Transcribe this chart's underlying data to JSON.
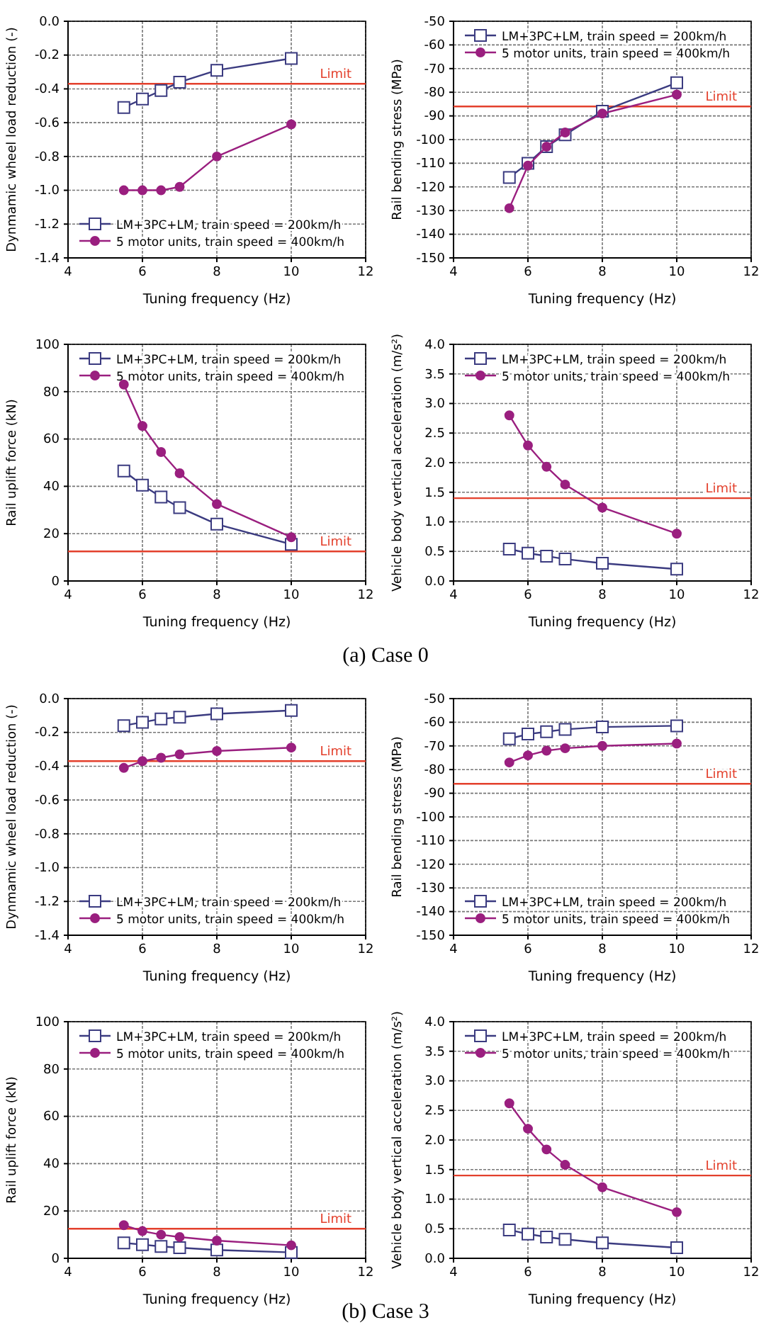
{
  "chart_data": [
    {
      "type": "line",
      "xlabel": "Tuning frequency (Hz)",
      "ylabel": "Dynmamic wheel load reduction (-)",
      "x": [
        5.5,
        6,
        6.5,
        7,
        8,
        10
      ],
      "xlim": [
        4,
        12
      ],
      "xticks": [
        4,
        6,
        8,
        10,
        12
      ],
      "ylim": [
        -1.4,
        0
      ],
      "yticks": [
        -1.4,
        -1.2,
        {
          "value": -1,
          "label": "-1.0"
        },
        -0.8,
        -0.6,
        -0.4,
        -0.2,
        {
          "value": 0,
          "label": "0.0"
        }
      ],
      "grid": true,
      "legend": "bottom",
      "series": [
        {
          "name": "LM+3PC+LM, train speed = 200km/h",
          "color": "#3b3b80",
          "marker": "square",
          "values": [
            -0.51,
            -0.46,
            -0.41,
            -0.36,
            -0.29,
            -0.22
          ]
        },
        {
          "name": "5 motor units, train speed = 400km/h",
          "color": "#9a1f7f",
          "marker": "circle",
          "values": [
            -1.0,
            -1.0,
            -1.0,
            -0.98,
            -0.8,
            -0.61
          ]
        }
      ],
      "ref_lines": [
        {
          "axis": "y",
          "value": -0.37,
          "label": "Limit",
          "color": "#e3402c"
        }
      ]
    },
    {
      "type": "line",
      "xlabel": "Tuning frequency (Hz)",
      "ylabel": "Rail bending stress (MPa)",
      "x": [
        5.5,
        6,
        6.5,
        7,
        8,
        10
      ],
      "xlim": [
        4,
        12
      ],
      "xticks": [
        4,
        6,
        8,
        10,
        12
      ],
      "ylim": [
        -150,
        -50
      ],
      "yticks": [
        -150,
        -140,
        -130,
        -120,
        -110,
        -100,
        -90,
        -80,
        -70,
        -60,
        -50
      ],
      "grid": true,
      "legend": "top",
      "series": [
        {
          "name": "LM+3PC+LM, train speed = 200km/h",
          "color": "#3b3b80",
          "marker": "square",
          "values": [
            -116,
            -110,
            -103,
            -98,
            -88,
            -76
          ]
        },
        {
          "name": "5 motor units, train speed = 400km/h",
          "color": "#9a1f7f",
          "marker": "circle",
          "values": [
            -129,
            -111,
            -103,
            -97,
            -89,
            -81
          ]
        }
      ],
      "ref_lines": [
        {
          "axis": "y",
          "value": -86,
          "label": "Limit",
          "color": "#e3402c"
        }
      ]
    },
    {
      "type": "line",
      "xlabel": "Tuning frequency (Hz)",
      "ylabel": "Rail uplift force (kN)",
      "x": [
        5.5,
        6,
        6.5,
        7,
        8,
        10
      ],
      "xlim": [
        4,
        12
      ],
      "xticks": [
        4,
        6,
        8,
        10,
        12
      ],
      "ylim": [
        0,
        100
      ],
      "yticks": [
        0,
        20,
        40,
        60,
        80,
        100
      ],
      "grid": true,
      "legend": "top",
      "series": [
        {
          "name": "LM+3PC+LM, train speed = 200km/h",
          "color": "#3b3b80",
          "marker": "square",
          "values": [
            46.5,
            40.5,
            35.5,
            31,
            24,
            15.5
          ]
        },
        {
          "name": "5 motor units, train speed = 400km/h",
          "color": "#9a1f7f",
          "marker": "circle",
          "values": [
            83,
            65.5,
            54.5,
            45.5,
            32.5,
            18.5
          ]
        }
      ],
      "ref_lines": [
        {
          "axis": "y",
          "value": 12.5,
          "label": "Limit",
          "color": "#e3402c"
        }
      ]
    },
    {
      "type": "line",
      "xlabel": "Tuning frequency (Hz)",
      "ylabel": "Vehicle body vertical acceleration (m/s²)",
      "x": [
        5.5,
        6,
        6.5,
        7,
        8,
        10
      ],
      "xlim": [
        4,
        12
      ],
      "xticks": [
        4,
        6,
        8,
        10,
        12
      ],
      "ylim": [
        0,
        4
      ],
      "yticks": [
        {
          "value": 0,
          "label": "0.0"
        },
        0.5,
        {
          "value": 1,
          "label": "1.0"
        },
        1.5,
        {
          "value": 2,
          "label": "2.0"
        },
        2.5,
        {
          "value": 3,
          "label": "3.0"
        },
        3.5,
        {
          "value": 4,
          "label": "4.0"
        }
      ],
      "grid": true,
      "legend": "top",
      "series": [
        {
          "name": "LM+3PC+LM, train speed = 200km/h",
          "color": "#3b3b80",
          "marker": "square",
          "values": [
            0.54,
            0.47,
            0.42,
            0.37,
            0.3,
            0.2
          ]
        },
        {
          "name": "5 motor units, train speed = 400km/h",
          "color": "#9a1f7f",
          "marker": "circle",
          "values": [
            2.8,
            2.29,
            1.93,
            1.63,
            1.24,
            0.8
          ]
        }
      ],
      "ref_lines": [
        {
          "axis": "y",
          "value": 1.4,
          "label": "Limit",
          "color": "#e3402c"
        }
      ],
      "annotations": [
        "(a) Case 0"
      ]
    },
    {
      "type": "line",
      "xlabel": "Tuning frequency (Hz)",
      "ylabel": "Dynmamic wheel load reduction (-)",
      "x": [
        5.5,
        6,
        6.5,
        7,
        8,
        10
      ],
      "xlim": [
        4,
        12
      ],
      "xticks": [
        4,
        6,
        8,
        10,
        12
      ],
      "ylim": [
        -1.4,
        0
      ],
      "yticks": [
        -1.4,
        -1.2,
        {
          "value": -1,
          "label": "-1.0"
        },
        -0.8,
        -0.6,
        -0.4,
        -0.2,
        {
          "value": 0,
          "label": "0.0"
        }
      ],
      "grid": true,
      "legend": "bottom",
      "series": [
        {
          "name": "LM+3PC+LM, train speed = 200km/h",
          "color": "#3b3b80",
          "marker": "square",
          "values": [
            -0.16,
            -0.14,
            -0.12,
            -0.11,
            -0.09,
            -0.07
          ]
        },
        {
          "name": "5 motor units, train speed = 400km/h",
          "color": "#9a1f7f",
          "marker": "circle",
          "values": [
            -0.41,
            -0.37,
            -0.35,
            -0.33,
            -0.31,
            -0.29
          ]
        }
      ],
      "ref_lines": [
        {
          "axis": "y",
          "value": -0.37,
          "label": "Limit",
          "color": "#e3402c"
        }
      ]
    },
    {
      "type": "line",
      "xlabel": "Tuning frequency (Hz)",
      "ylabel": "Rail bending stress (MPa)",
      "x": [
        5.5,
        6,
        6.5,
        7,
        8,
        10
      ],
      "xlim": [
        4,
        12
      ],
      "xticks": [
        4,
        6,
        8,
        10,
        12
      ],
      "ylim": [
        -150,
        -50
      ],
      "yticks": [
        -150,
        -140,
        -130,
        -120,
        -110,
        -100,
        -90,
        -80,
        -70,
        -60,
        -50
      ],
      "grid": true,
      "legend": "bottom",
      "series": [
        {
          "name": "LM+3PC+LM, train speed = 200km/h",
          "color": "#3b3b80",
          "marker": "square",
          "values": [
            -67,
            -65,
            -64,
            -63,
            -62,
            -61.5
          ]
        },
        {
          "name": "5 motor units, train speed = 400km/h",
          "color": "#9a1f7f",
          "marker": "circle",
          "values": [
            -77,
            -74,
            -72,
            -71,
            -70,
            -69
          ]
        }
      ],
      "ref_lines": [
        {
          "axis": "y",
          "value": -86,
          "label": "Limit",
          "color": "#e3402c"
        }
      ]
    },
    {
      "type": "line",
      "xlabel": "Tuning frequency (Hz)",
      "ylabel": "Rail uplift force (kN)",
      "x": [
        5.5,
        6,
        6.5,
        7,
        8,
        10
      ],
      "xlim": [
        4,
        12
      ],
      "xticks": [
        4,
        6,
        8,
        10,
        12
      ],
      "ylim": [
        0,
        100
      ],
      "yticks": [
        0,
        20,
        40,
        60,
        80,
        100
      ],
      "grid": true,
      "legend": "top",
      "series": [
        {
          "name": "LM+3PC+LM, train speed = 200km/h",
          "color": "#3b3b80",
          "marker": "square",
          "values": [
            6.5,
            5.8,
            5,
            4.5,
            3.5,
            2.5
          ]
        },
        {
          "name": "5 motor units, train speed = 400km/h",
          "color": "#9a1f7f",
          "marker": "circle",
          "values": [
            14,
            11.5,
            10,
            9,
            7.5,
            5.5
          ]
        }
      ],
      "ref_lines": [
        {
          "axis": "y",
          "value": 12.5,
          "label": "Limit",
          "color": "#e3402c"
        }
      ]
    },
    {
      "type": "line",
      "xlabel": "Tuning frequency (Hz)",
      "ylabel": "Vehicle body vertical acceleration (m/s²)",
      "x": [
        5.5,
        6,
        6.5,
        7,
        8,
        10
      ],
      "xlim": [
        4,
        12
      ],
      "xticks": [
        4,
        6,
        8,
        10,
        12
      ],
      "ylim": [
        0,
        4
      ],
      "yticks": [
        {
          "value": 0,
          "label": "0.0"
        },
        0.5,
        {
          "value": 1,
          "label": "1.0"
        },
        1.5,
        {
          "value": 2,
          "label": "2.0"
        },
        2.5,
        {
          "value": 3,
          "label": "3.0"
        },
        3.5,
        {
          "value": 4,
          "label": "4.0"
        }
      ],
      "grid": true,
      "legend": "top",
      "series": [
        {
          "name": "LM+3PC+LM, train speed = 200km/h",
          "color": "#3b3b80",
          "marker": "square",
          "values": [
            0.48,
            0.41,
            0.36,
            0.32,
            0.26,
            0.18
          ]
        },
        {
          "name": "5 motor units, train speed = 400km/h",
          "color": "#9a1f7f",
          "marker": "circle",
          "values": [
            2.62,
            2.19,
            1.84,
            1.58,
            1.2,
            0.78
          ]
        }
      ],
      "ref_lines": [
        {
          "axis": "y",
          "value": 1.4,
          "label": "Limit",
          "color": "#e3402c"
        }
      ],
      "annotations": [
        "(b) Case 3"
      ]
    }
  ]
}
